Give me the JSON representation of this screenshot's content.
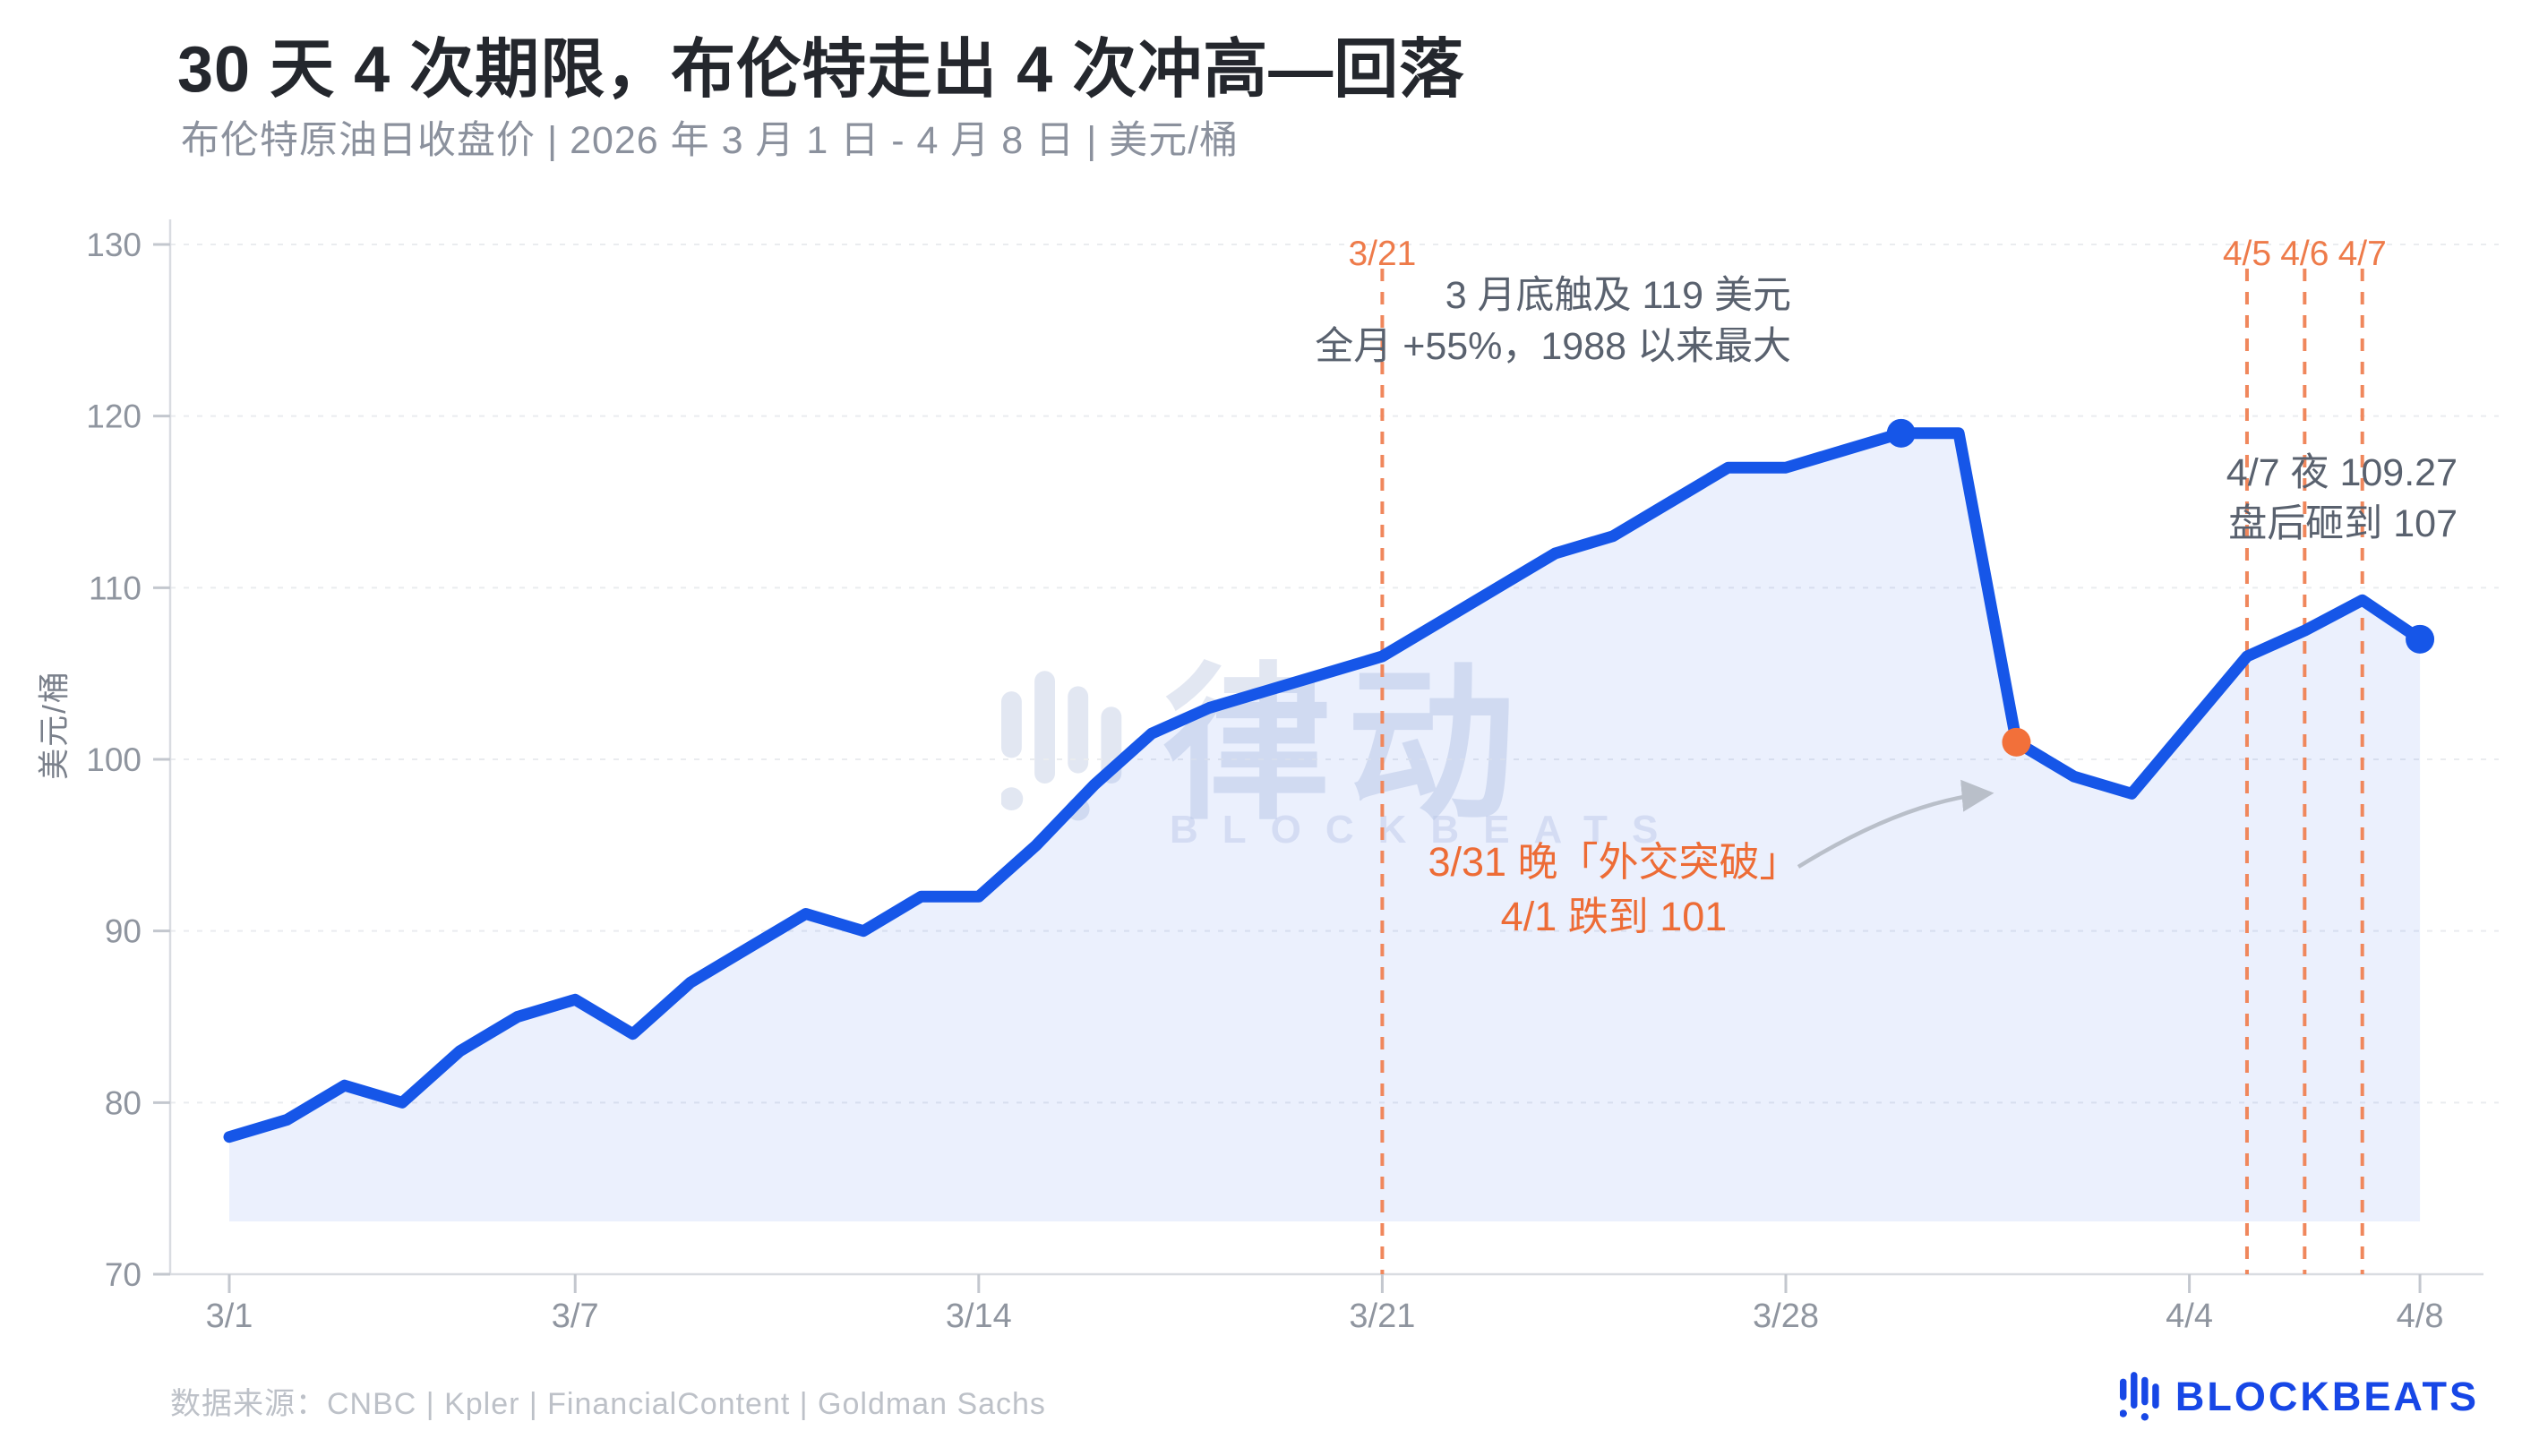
{
  "header": {
    "title": "30 天 4 次期限，布伦特走出 4 次冲高—回落",
    "subtitle": "布伦特原油日收盘价  |  2026 年 3 月 1 日 - 4 月 8 日  |  美元/桶"
  },
  "y_axis_title": "美元/桶",
  "watermark": {
    "cn": "律动",
    "en": "BLOCKBEATS"
  },
  "footer": {
    "source": "数据来源：CNBC | Kpler | FinancialContent | Goldman Sachs",
    "brand": "BLOCKBEATS"
  },
  "colors": {
    "line_blue": "#1656e8",
    "area_fill": "rgba(22,86,232,0.085)",
    "orange_dashed": "#f0875c",
    "orange_label": "#ee7b4a",
    "orange_text": "#ed6c36",
    "orange_dot": "#f2703a",
    "annotation_gray": "#59616e",
    "grid": "#eaecef",
    "axis": "#d9dce1",
    "tick_label": "#8f959f",
    "brand_blue": "#1747e6"
  },
  "chart_data": {
    "type": "area",
    "title": "布伦特原油日收盘价",
    "xlabel": "",
    "ylabel": "美元/桶",
    "ylim": [
      70,
      130
    ],
    "grid": "horizontal-dashed",
    "x": [
      "3/1",
      "3/2",
      "3/3",
      "3/4",
      "3/5",
      "3/6",
      "3/7",
      "3/8",
      "3/9",
      "3/10",
      "3/11",
      "3/12",
      "3/13",
      "3/14",
      "3/15",
      "3/16",
      "3/17",
      "3/18",
      "3/19",
      "3/20",
      "3/21",
      "3/22",
      "3/23",
      "3/24",
      "3/25",
      "3/26",
      "3/27",
      "3/28",
      "3/29",
      "3/30",
      "3/31",
      "4/1",
      "4/2",
      "4/3",
      "4/4",
      "4/5",
      "4/6",
      "4/7",
      "4/8"
    ],
    "values": [
      78,
      79,
      81,
      80,
      83,
      85,
      86,
      84,
      87,
      89,
      91,
      90,
      92,
      92,
      95,
      98.5,
      101.5,
      103,
      104,
      105,
      106,
      108,
      110,
      112,
      113,
      115,
      117,
      117,
      118,
      119,
      119,
      101,
      99,
      98,
      102,
      106,
      107.5,
      109.27,
      107
    ],
    "yticks": [
      70,
      80,
      90,
      100,
      110,
      120,
      130
    ],
    "xtick_labels": [
      "3/1",
      "3/7",
      "3/14",
      "3/21",
      "3/28",
      "4/4",
      "4/8"
    ],
    "vlines": [
      {
        "date": "3/21",
        "label": "3/21"
      },
      {
        "date": "4/5",
        "label": "4/5"
      },
      {
        "date": "4/6",
        "label": "4/6"
      },
      {
        "date": "4/7",
        "label": "4/7"
      }
    ],
    "markers": [
      {
        "date": "3/30",
        "value": 119,
        "color": "blue"
      },
      {
        "date": "4/1",
        "value": 101,
        "color": "orange"
      },
      {
        "date": "4/8",
        "value": 107,
        "color": "blue"
      }
    ],
    "annotations": [
      {
        "id": "peak",
        "style": "gray",
        "lines": [
          "3 月底触及 119 美元",
          "全月 +55%，1988 以来最大"
        ]
      },
      {
        "id": "night",
        "style": "gray",
        "lines": [
          "4/7 夜 109.27",
          "盘后砸到 107"
        ]
      },
      {
        "id": "drop",
        "style": "orange",
        "lines": [
          "3/31 晚「外交突破」",
          "4/1 跌到 101"
        ]
      }
    ]
  }
}
